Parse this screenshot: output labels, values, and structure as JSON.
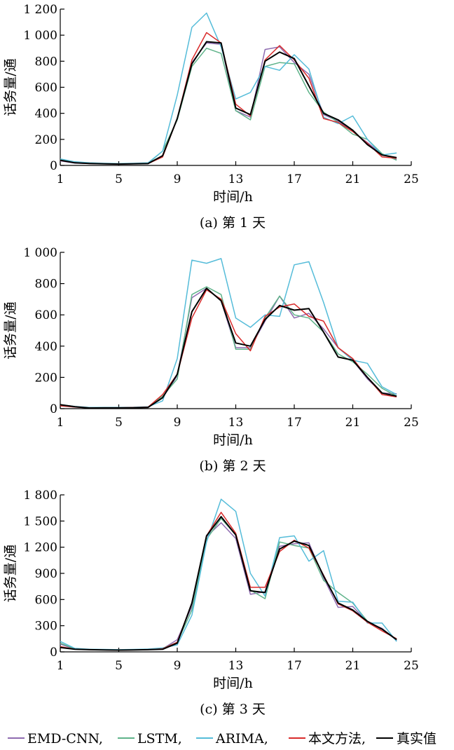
{
  "legend": [
    {
      "label": "EMD-CNN,",
      "color": "#8e6bb0"
    },
    {
      "label": "LSTM,",
      "color": "#5fb38a"
    },
    {
      "label": "ARIMA,",
      "color": "#55bcd9"
    },
    {
      "label": "本文方法,",
      "color": "#d92b2b"
    },
    {
      "label": "真实值",
      "color": "#000000"
    }
  ],
  "chart_data": [
    {
      "type": "line",
      "caption": "(a) 第 1 天",
      "xlabel": "时间/h",
      "ylabel": "话务量/通",
      "xlim": [
        1,
        25
      ],
      "ylim": [
        0,
        1200
      ],
      "xticks": [
        1,
        5,
        9,
        13,
        17,
        21,
        25
      ],
      "xtick_labels": [
        "1",
        "5",
        "9",
        "13",
        "17",
        "21",
        "25"
      ],
      "yticks": [
        0,
        200,
        400,
        600,
        800,
        1000,
        1200
      ],
      "ytick_labels": [
        "0",
        "200",
        "400",
        "600",
        "800",
        "1 000",
        "1 200"
      ],
      "x": [
        1,
        2,
        3,
        4,
        5,
        6,
        7,
        8,
        9,
        10,
        11,
        12,
        13,
        14,
        15,
        16,
        17,
        18,
        19,
        20,
        21,
        22,
        23,
        24
      ],
      "series": [
        {
          "name": "EMD-CNN",
          "values": [
            35,
            18,
            14,
            12,
            10,
            12,
            14,
            70,
            360,
            790,
            940,
            930,
            420,
            370,
            890,
            910,
            790,
            700,
            390,
            340,
            260,
            175,
            85,
            45
          ]
        },
        {
          "name": "LSTM",
          "values": [
            45,
            22,
            16,
            14,
            12,
            14,
            16,
            110,
            350,
            760,
            900,
            860,
            420,
            350,
            760,
            790,
            780,
            560,
            410,
            330,
            240,
            200,
            90,
            40
          ]
        },
        {
          "name": "ARIMA",
          "values": [
            50,
            28,
            20,
            16,
            14,
            16,
            20,
            110,
            540,
            1060,
            1170,
            910,
            510,
            560,
            760,
            730,
            850,
            740,
            370,
            320,
            380,
            200,
            80,
            95
          ]
        },
        {
          "name": "本文方法",
          "values": [
            38,
            20,
            14,
            12,
            10,
            12,
            14,
            65,
            360,
            810,
            1020,
            940,
            470,
            380,
            810,
            920,
            810,
            670,
            360,
            330,
            260,
            170,
            65,
            55
          ]
        },
        {
          "name": "真实值",
          "values": [
            40,
            20,
            15,
            12,
            10,
            12,
            14,
            75,
            360,
            780,
            950,
            940,
            440,
            390,
            800,
            870,
            820,
            610,
            400,
            350,
            270,
            160,
            80,
            60
          ]
        }
      ]
    },
    {
      "type": "line",
      "caption": "(b) 第 2 天",
      "xlabel": "时间/h",
      "ylabel": "话务量/通",
      "xlim": [
        1,
        25
      ],
      "ylim": [
        0,
        1000
      ],
      "xticks": [
        1,
        5,
        9,
        13,
        17,
        21,
        25
      ],
      "xtick_labels": [
        "1",
        "5",
        "9",
        "13",
        "17",
        "21",
        "25"
      ],
      "yticks": [
        0,
        200,
        400,
        600,
        800,
        1000
      ],
      "ytick_labels": [
        "0",
        "200",
        "400",
        "600",
        "800",
        "1 000"
      ],
      "x": [
        1,
        2,
        3,
        4,
        5,
        6,
        7,
        8,
        9,
        10,
        11,
        12,
        13,
        14,
        15,
        16,
        17,
        18,
        19,
        20,
        21,
        22,
        23,
        24
      ],
      "series": [
        {
          "name": "EMD-CNN",
          "values": [
            20,
            10,
            5,
            5,
            5,
            6,
            8,
            70,
            210,
            710,
            770,
            690,
            390,
            390,
            560,
            720,
            580,
            610,
            510,
            390,
            310,
            190,
            100,
            95
          ]
        },
        {
          "name": "LSTM",
          "values": [
            22,
            12,
            6,
            6,
            6,
            7,
            9,
            80,
            190,
            730,
            780,
            730,
            380,
            380,
            580,
            720,
            600,
            580,
            490,
            350,
            300,
            220,
            130,
            80
          ]
        },
        {
          "name": "ARIMA",
          "values": [
            25,
            14,
            8,
            8,
            8,
            9,
            12,
            50,
            320,
            950,
            930,
            960,
            580,
            520,
            600,
            590,
            920,
            940,
            680,
            390,
            310,
            290,
            140,
            90
          ]
        },
        {
          "name": "本文方法",
          "values": [
            18,
            10,
            5,
            6,
            6,
            7,
            10,
            90,
            220,
            580,
            760,
            700,
            480,
            370,
            590,
            650,
            670,
            590,
            560,
            390,
            320,
            200,
            90,
            75
          ]
        },
        {
          "name": "真实值",
          "values": [
            25,
            12,
            4,
            5,
            5,
            6,
            8,
            70,
            220,
            620,
            770,
            690,
            420,
            400,
            570,
            660,
            630,
            640,
            490,
            330,
            310,
            200,
            100,
            80
          ]
        }
      ]
    },
    {
      "type": "line",
      "caption": "(c) 第 3 天",
      "xlabel": "时间/h",
      "ylabel": "话务量/通",
      "xlim": [
        1,
        25
      ],
      "ylim": [
        0,
        1800
      ],
      "xticks": [
        1,
        5,
        9,
        13,
        17,
        21,
        25
      ],
      "xtick_labels": [
        "1",
        "5",
        "9",
        "13",
        "17",
        "21",
        "25"
      ],
      "yticks": [
        0,
        300,
        600,
        900,
        1200,
        1500,
        1800
      ],
      "ytick_labels": [
        "0",
        "300",
        "600",
        "900",
        "1 200",
        "1 500",
        "1 800"
      ],
      "x": [
        1,
        2,
        3,
        4,
        5,
        6,
        7,
        8,
        9,
        10,
        11,
        12,
        13,
        14,
        15,
        16,
        17,
        18,
        19,
        20,
        21,
        22,
        23,
        24
      ],
      "series": [
        {
          "name": "EMD-CNN",
          "values": [
            90,
            30,
            25,
            22,
            20,
            22,
            25,
            35,
            140,
            520,
            1320,
            1480,
            1300,
            660,
            690,
            1210,
            1240,
            1250,
            850,
            510,
            520,
            340,
            270,
            130
          ]
        },
        {
          "name": "LSTM",
          "values": [
            100,
            35,
            28,
            25,
            22,
            25,
            28,
            40,
            110,
            480,
            1290,
            1530,
            1340,
            710,
            610,
            1260,
            1220,
            1190,
            820,
            680,
            560,
            350,
            260,
            140
          ]
        },
        {
          "name": "ARIMA",
          "values": [
            120,
            40,
            30,
            28,
            25,
            28,
            32,
            45,
            80,
            420,
            1260,
            1750,
            1610,
            900,
            640,
            1310,
            1330,
            1040,
            1160,
            580,
            570,
            330,
            330,
            120
          ]
        },
        {
          "name": "本文方法",
          "values": [
            60,
            30,
            25,
            22,
            20,
            22,
            25,
            35,
            110,
            560,
            1330,
            1600,
            1360,
            740,
            740,
            1150,
            1280,
            1190,
            880,
            550,
            470,
            340,
            240,
            150
          ]
        },
        {
          "name": "真实值",
          "values": [
            50,
            30,
            25,
            22,
            20,
            22,
            25,
            30,
            100,
            560,
            1330,
            1550,
            1340,
            700,
            680,
            1180,
            1270,
            1220,
            870,
            560,
            480,
            350,
            260,
            140
          ]
        }
      ]
    }
  ]
}
